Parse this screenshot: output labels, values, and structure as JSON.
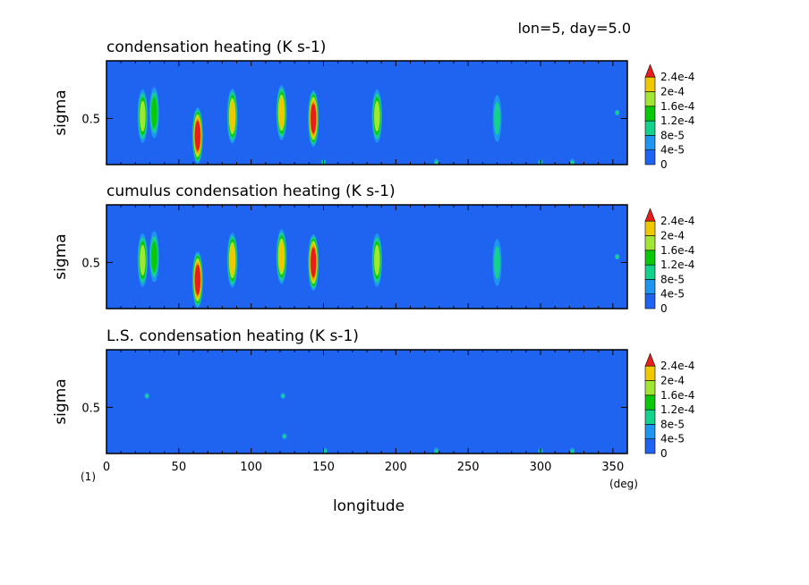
{
  "header": {
    "label": "lon=5, day=5.0"
  },
  "figure_tag": "(1)",
  "x_axis": {
    "label": "longitude",
    "unit": "(deg)",
    "ticks": [
      0,
      50,
      100,
      150,
      200,
      250,
      300,
      350
    ],
    "range": [
      0,
      360
    ]
  },
  "y_axis": {
    "label": "sigma",
    "tick": "0.5",
    "range": [
      0.1,
      1.0
    ]
  },
  "colorbar": {
    "levels": [
      "0",
      "4e-5",
      "8e-5",
      "1.2e-4",
      "1.6e-4",
      "2e-4",
      "2.4e-4"
    ],
    "colors": [
      "#1e64f0",
      "#1e96f0",
      "#14d28c",
      "#0ac80a",
      "#a0e632",
      "#f0c800",
      "#f08c00"
    ],
    "over_color": "#e61e1e"
  },
  "chart_data": [
    {
      "type": "heatmap",
      "title": "condensation heating (K s-1)",
      "xlabel": "longitude",
      "ylabel": "sigma",
      "xlim": [
        0,
        360
      ],
      "ylim": [
        0.1,
        1.0
      ],
      "cells": [
        {
          "lon": 25,
          "sigma": 0.52,
          "value": 0.00014
        },
        {
          "lon": 33,
          "sigma": 0.55,
          "value": 0.0001
        },
        {
          "lon": 63,
          "sigma": 0.35,
          "value": 0.00028
        },
        {
          "lon": 87,
          "sigma": 0.52,
          "value": 0.00018
        },
        {
          "lon": 121,
          "sigma": 0.55,
          "value": 0.00019
        },
        {
          "lon": 143,
          "sigma": 0.5,
          "value": 0.00028
        },
        {
          "lon": 150,
          "sigma": 0.12,
          "value": 5e-05
        },
        {
          "lon": 187,
          "sigma": 0.52,
          "value": 0.00012
        },
        {
          "lon": 228,
          "sigma": 0.1,
          "value": 5e-05
        },
        {
          "lon": 270,
          "sigma": 0.5,
          "value": 7e-05
        },
        {
          "lon": 300,
          "sigma": 0.1,
          "value": 5e-05
        },
        {
          "lon": 322,
          "sigma": 0.1,
          "value": 5e-05
        },
        {
          "lon": 353,
          "sigma": 0.55,
          "value": 5e-05
        }
      ]
    },
    {
      "type": "heatmap",
      "title": "cumulus condensation heating (K s-1)",
      "xlabel": "longitude",
      "ylabel": "sigma",
      "xlim": [
        0,
        360
      ],
      "ylim": [
        0.1,
        1.0
      ],
      "cells": [
        {
          "lon": 25,
          "sigma": 0.52,
          "value": 0.00014
        },
        {
          "lon": 33,
          "sigma": 0.55,
          "value": 0.0001
        },
        {
          "lon": 63,
          "sigma": 0.35,
          "value": 0.00028
        },
        {
          "lon": 87,
          "sigma": 0.52,
          "value": 0.00018
        },
        {
          "lon": 121,
          "sigma": 0.55,
          "value": 0.00019
        },
        {
          "lon": 143,
          "sigma": 0.5,
          "value": 0.00028
        },
        {
          "lon": 187,
          "sigma": 0.52,
          "value": 0.00012
        },
        {
          "lon": 270,
          "sigma": 0.5,
          "value": 7e-05
        },
        {
          "lon": 353,
          "sigma": 0.55,
          "value": 5e-05
        }
      ]
    },
    {
      "type": "heatmap",
      "title": "L.S. condensation heating (K s-1)",
      "xlabel": "longitude",
      "ylabel": "sigma",
      "xlim": [
        0,
        360
      ],
      "ylim": [
        0.1,
        1.0
      ],
      "cells": [
        {
          "lon": 28,
          "sigma": 0.6,
          "value": 5e-05
        },
        {
          "lon": 122,
          "sigma": 0.6,
          "value": 4e-05
        },
        {
          "lon": 123,
          "sigma": 0.25,
          "value": 5e-05
        },
        {
          "lon": 151,
          "sigma": 0.12,
          "value": 5e-05
        },
        {
          "lon": 228,
          "sigma": 0.1,
          "value": 5e-05
        },
        {
          "lon": 300,
          "sigma": 0.12,
          "value": 5e-05
        },
        {
          "lon": 322,
          "sigma": 0.1,
          "value": 5e-05
        }
      ]
    }
  ]
}
